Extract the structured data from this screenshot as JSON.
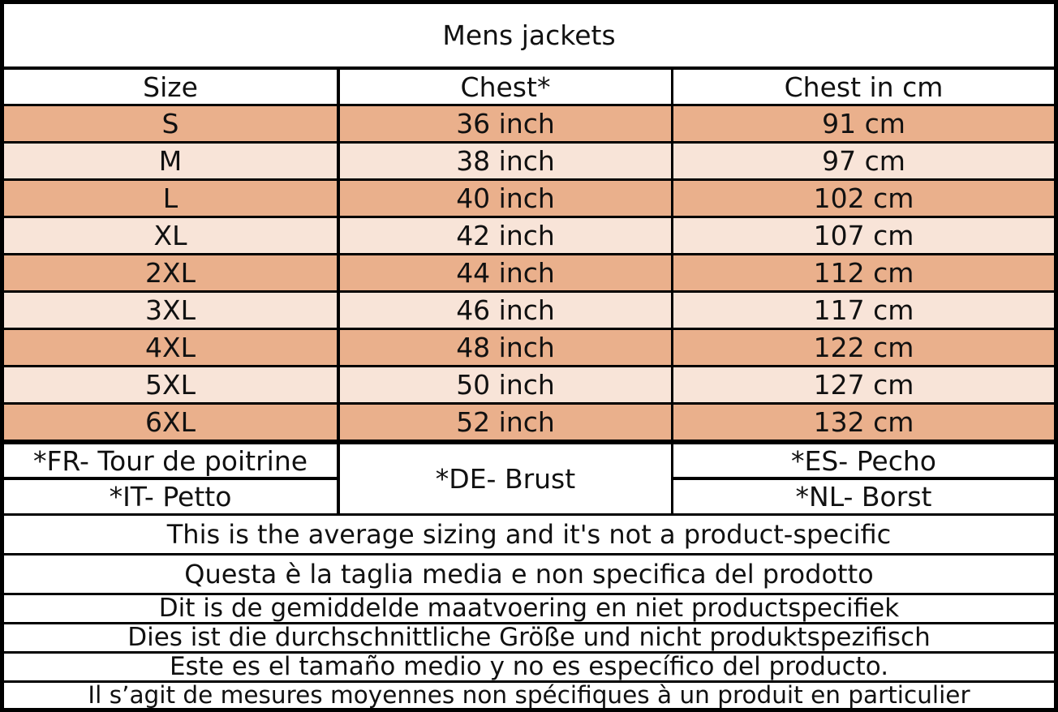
{
  "title": "Mens jackets",
  "headers": [
    "Size",
    "Chest*",
    "Chest in cm"
  ],
  "rows": [
    {
      "size": "S",
      "chest": "36 inch",
      "cm": "91 cm"
    },
    {
      "size": "M",
      "chest": "38 inch",
      "cm": "97 cm"
    },
    {
      "size": "L",
      "chest": "40 inch",
      "cm": "102 cm"
    },
    {
      "size": "XL",
      "chest": "42 inch",
      "cm": "107 cm"
    },
    {
      "size": "2XL",
      "chest": "44 inch",
      "cm": "112 cm"
    },
    {
      "size": "3XL",
      "chest": "46 inch",
      "cm": "117 cm"
    },
    {
      "size": "4XL",
      "chest": "48 inch",
      "cm": "122 cm"
    },
    {
      "size": "5XL",
      "chest": "50 inch",
      "cm": "127 cm"
    },
    {
      "size": "6XL",
      "chest": "52 inch",
      "cm": "132 cm"
    }
  ],
  "translations": {
    "fr": "*FR- Tour de poitrine",
    "it": "*IT- Petto",
    "de": "*DE- Brust",
    "es": "*ES- Pecho",
    "nl": "*NL- Borst"
  },
  "notes": [
    "This is the average sizing and it's not a product-specific",
    "Questa è la taglia media e non specifica del prodotto",
    "Dit is de gemiddelde maatvoering en niet productspecifiek",
    "Dies ist die durchschnittliche Größe und nicht produktspezifisch",
    "Este es el tamaño medio y no es específico del producto.",
    "Il s’agit de mesures moyennes non spécifiques à un produit en particulier"
  ],
  "colors": {
    "row_dark": "#eab08c",
    "row_light": "#f8e4d8",
    "border": "#000000"
  }
}
